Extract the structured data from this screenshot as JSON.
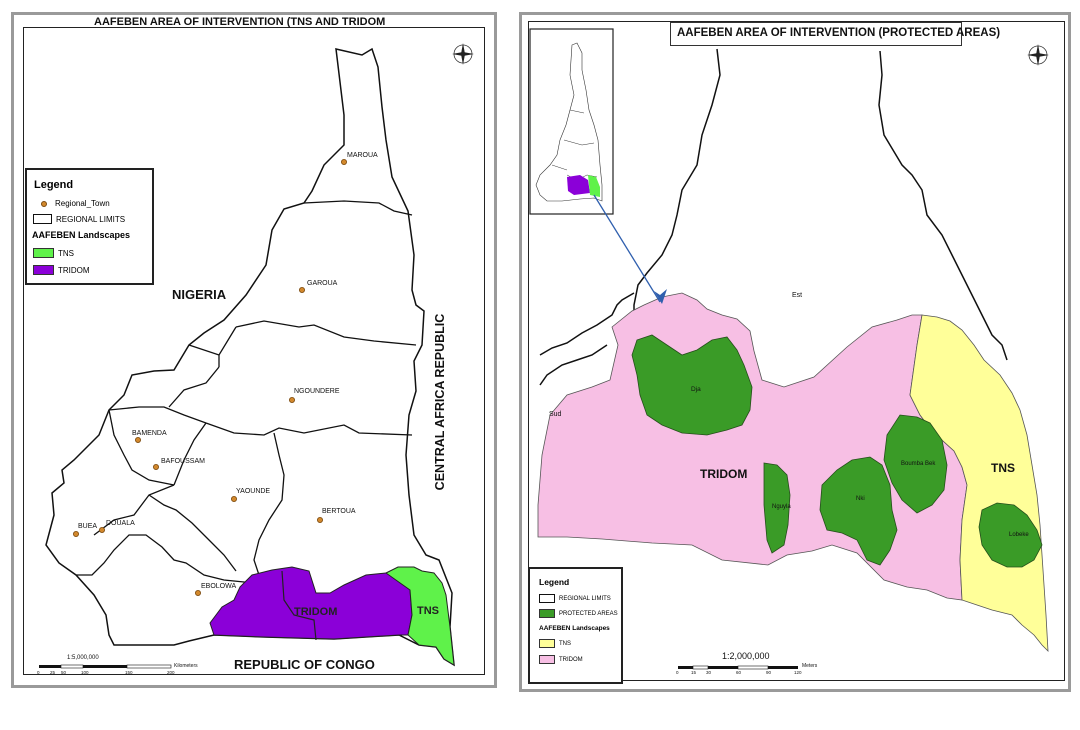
{
  "map1": {
    "title": "AAFEBEN AREA OF INTERVENTION (TNS AND TRIDOM",
    "legend": {
      "title": "Legend",
      "town_item": "Regional_Town",
      "limits_item": "REGIONAL LIMITS",
      "landscapes_title": "AAFEBEN Landscapes",
      "tns_item": "TNS",
      "tridom_item": "TRIDOM"
    },
    "countries": {
      "nigeria": "NIGERIA",
      "car": "CENTRAL AFRICA REPUBLIC",
      "congo": "REPUBLIC OF CONGO"
    },
    "towns": [
      "MAROUA",
      "GAROUA",
      "NGOUNDERE",
      "BAMENDA",
      "BAFOUSSAM",
      "YAOUNDE",
      "BERTOUA",
      "DOUALA",
      "BUEA",
      "EBOLOWA"
    ],
    "landscape_labels": {
      "tridom": "TRIDOM",
      "tns": "TNS"
    },
    "scale": {
      "ratio": "1:5,000,000",
      "unit": "Kilometers",
      "ticks": [
        "0",
        "25",
        "50",
        "100",
        "150",
        "200"
      ]
    }
  },
  "map2": {
    "title": "AAFEBEN AREA OF INTERVENTION (PROTECTED AREAS)",
    "regions": {
      "est": "Est",
      "sud": "Sud"
    },
    "landscape_labels": {
      "tridom": "TRIDOM",
      "tns": "TNS"
    },
    "protected_areas": [
      "Dja",
      "Nguyla",
      "Nki",
      "Boumba Bek",
      "Lobeke"
    ],
    "legend": {
      "title": "Legend",
      "limits_item": "REGIONAL LIMITS",
      "protected_item": "PROTECTED AREAS",
      "landscapes_title": "AAFEBEN Landscapes",
      "tns_item": "TNS",
      "tridom_item": "TRIDOM"
    },
    "scale": {
      "ratio": "1:2,000,000",
      "unit": "Meters",
      "ticks": [
        "0",
        "15",
        "30",
        "60",
        "90",
        "120"
      ]
    }
  },
  "colors": {
    "tns_map1": "#5ff24a",
    "tridom_map1": "#8b00d8",
    "tns_map2": "#ffff99",
    "tridom_map2": "#f7bfe4",
    "protected": "#3a9b27",
    "town": "#d2882c",
    "arrow": "#2f5fae"
  }
}
